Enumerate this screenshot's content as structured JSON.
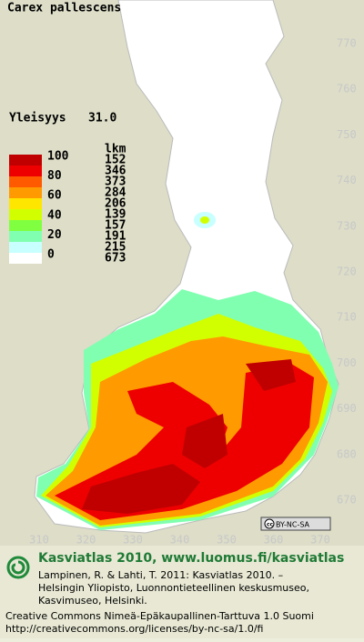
{
  "title": "Carex pallescens",
  "frequency": {
    "label": "Yleisyys",
    "value": "31.0"
  },
  "legend": {
    "count_header": "lkm",
    "class_labels": [
      "100",
      "80",
      "60",
      "40",
      "20",
      "0"
    ],
    "counts": [
      "152",
      "346",
      "373",
      "284",
      "206",
      "139",
      "157",
      "191",
      "215",
      "673"
    ],
    "colors": [
      "#c00000",
      "#ee0000",
      "#ff5a00",
      "#ff9a00",
      "#ffe600",
      "#d2ff00",
      "#80ff40",
      "#80ffb0",
      "#c8ffff",
      "#ffffff"
    ]
  },
  "map": {
    "y_labels": [
      "770",
      "760",
      "750",
      "740",
      "730",
      "720",
      "710",
      "700",
      "690",
      "680",
      "670"
    ],
    "x_labels": [
      "310",
      "320",
      "330",
      "340",
      "350",
      "360",
      "370"
    ],
    "license_badge": "BY-NC-SA"
  },
  "footer": {
    "heading": "Kasviatlas 2010, www.luomus.fi/kasviatlas",
    "citation": [
      "Lampinen, R. & Lahti, T. 2011: Kasviatlas 2010. –",
      "Helsingin Yliopisto, Luonnontieteellinen keskusmuseo,",
      "Kasvimuseo, Helsinki."
    ],
    "license": [
      "Creative Commons Nimeä-Epäkaupallinen-Tarttuva 1.0 Suomi",
      "http://creativecommons.org/licenses/by-nc-sa/1.0/fi"
    ]
  }
}
